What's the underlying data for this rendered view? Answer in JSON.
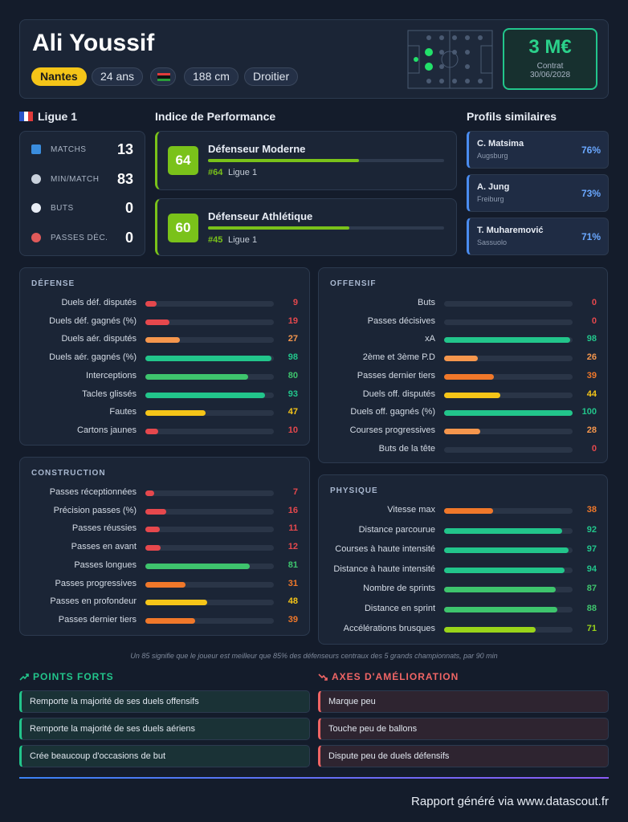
{
  "header": {
    "name": "Ali Youssif",
    "club": "Nantes",
    "age": "24 ans",
    "height": "188 cm",
    "foot": "Droitier",
    "value": "3 M€",
    "contract_label": "Contrat",
    "contract_date": "30/06/2028"
  },
  "league": {
    "name": "Ligue 1",
    "stats": [
      {
        "label": "MATCHS",
        "value": 13
      },
      {
        "label": "MIN/MATCH",
        "value": 83
      },
      {
        "label": "BUTS",
        "value": 0
      },
      {
        "label": "PASSES DÉC.",
        "value": 0
      }
    ]
  },
  "performance": {
    "title": "Indice de Performance",
    "items": [
      {
        "score": 64,
        "name": "Défenseur Moderne",
        "rank": "#64",
        "league": "Ligue 1"
      },
      {
        "score": 60,
        "name": "Défenseur Athlétique",
        "rank": "#45",
        "league": "Ligue 1"
      }
    ]
  },
  "similar": {
    "title": "Profils similaires",
    "items": [
      {
        "name": "C. Matsima",
        "club": "Augsburg",
        "score": "76%"
      },
      {
        "name": "A. Jung",
        "club": "Freiburg",
        "score": "73%"
      },
      {
        "name": "T. Muharemović",
        "club": "Sassuolo",
        "score": "71%"
      }
    ]
  },
  "xlim": [
    0,
    100
  ],
  "sections": [
    {
      "title": "DÉFENSE",
      "rows": [
        {
          "label": "Duels déf. disputés",
          "value": 9,
          "color": "#e5484d"
        },
        {
          "label": "Duels déf. gagnés (%)",
          "value": 19,
          "color": "#e5484d"
        },
        {
          "label": "Duels aér. disputés",
          "value": 27,
          "color": "#f5964d"
        },
        {
          "label": "Duels aér. gagnés (%)",
          "value": 98,
          "color": "#22c58b"
        },
        {
          "label": "Interceptions",
          "value": 80,
          "color": "#3ec46d"
        },
        {
          "label": "Tacles glissés",
          "value": 93,
          "color": "#22c58b"
        },
        {
          "label": "Fautes",
          "value": 47,
          "color": "#f5c518"
        },
        {
          "label": "Cartons jaunes",
          "value": 10,
          "color": "#e5484d"
        }
      ]
    },
    {
      "title": "OFFENSIF",
      "rows": [
        {
          "label": "Buts",
          "value": 0,
          "color": "#e5484d"
        },
        {
          "label": "Passes décisives",
          "value": 0,
          "color": "#e5484d"
        },
        {
          "label": "xA",
          "value": 98,
          "color": "#22c58b"
        },
        {
          "label": "2ème et 3ème P.D",
          "value": 26,
          "color": "#f5964d"
        },
        {
          "label": "Passes dernier tiers",
          "value": 39,
          "color": "#f0782a"
        },
        {
          "label": "Duels off. disputés",
          "value": 44,
          "color": "#f5c518"
        },
        {
          "label": "Duels off. gagnés (%)",
          "value": 100,
          "color": "#22c58b"
        },
        {
          "label": "Courses progressives",
          "value": 28,
          "color": "#f5964d"
        },
        {
          "label": "Buts de la tête",
          "value": 0,
          "color": "#e5484d"
        }
      ]
    },
    {
      "title": "CONSTRUCTION",
      "rows": [
        {
          "label": "Passes réceptionnées",
          "value": 7,
          "color": "#e5484d"
        },
        {
          "label": "Précision passes (%)",
          "value": 16,
          "color": "#e5484d"
        },
        {
          "label": "Passes réussies",
          "value": 11,
          "color": "#e5484d"
        },
        {
          "label": "Passes en avant",
          "value": 12,
          "color": "#e5484d"
        },
        {
          "label": "Passes longues",
          "value": 81,
          "color": "#3ec46d"
        },
        {
          "label": "Passes progressives",
          "value": 31,
          "color": "#f0782a"
        },
        {
          "label": "Passes en profondeur",
          "value": 48,
          "color": "#f5c518"
        },
        {
          "label": "Passes dernier tiers",
          "value": 39,
          "color": "#f0782a"
        }
      ]
    },
    {
      "title": "PHYSIQUE",
      "rows": [
        {
          "label": "Vitesse max",
          "value": 38,
          "color": "#f0782a"
        },
        {
          "label": "Distance parcourue",
          "value": 92,
          "color": "#22c58b"
        },
        {
          "label": "Courses à haute intensité",
          "value": 97,
          "color": "#22c58b"
        },
        {
          "label": "Distance à haute intensité",
          "value": 94,
          "color": "#22c58b"
        },
        {
          "label": "Nombre de sprints",
          "value": 87,
          "color": "#3ec46d"
        },
        {
          "label": "Distance en sprint",
          "value": 88,
          "color": "#3ec46d"
        },
        {
          "label": "Accélérations brusques",
          "value": 71,
          "color": "#9ad41a"
        }
      ]
    }
  ],
  "footnote": "Un 85 signifie que le joueur est meilleur que 85% des défenseurs centraux des 5 grands championnats, par 90 min",
  "strengths": {
    "title": "POINTS FORTS",
    "items": [
      "Remporte la majorité de ses duels offensifs",
      "Remporte la majorité de ses duels aériens",
      "Crée beaucoup d'occasions de but"
    ]
  },
  "weaknesses": {
    "title": "AXES D'AMÉLIORATION",
    "items": [
      "Marque peu",
      "Touche peu de ballons",
      "Dispute peu de duels défensifs"
    ]
  },
  "footer": "Rapport généré via www.datascout.fr"
}
